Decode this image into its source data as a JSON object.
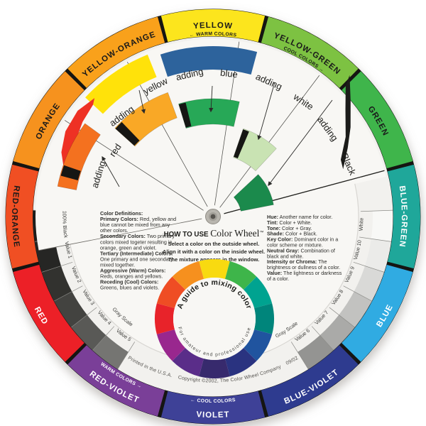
{
  "scene": {
    "background": "#ffffff",
    "card_color": "#f2f1ee",
    "top_disc_color": "#f8f7f4"
  },
  "outer_ring": {
    "separator_color": "#151512",
    "segments": [
      {
        "label": "YELLOW",
        "color": "#FCE51D",
        "text_color": "#1a1a1a",
        "flipped": false,
        "sub_label": "←  WARM COLORS"
      },
      {
        "label": "YELLOW-GREEN",
        "color": "#7DC242",
        "text_color": "#1a1a1a",
        "flipped": false,
        "sub_label": "COOL COLORS  →"
      },
      {
        "label": "GREEN",
        "color": "#3FB54B",
        "text_color": "#1a1a1a",
        "flipped": false
      },
      {
        "label": "BLUE-GREEN",
        "color": "#1FA79A",
        "text_color": "#ffffff",
        "flipped": false
      },
      {
        "label": "BLUE",
        "color": "#30ABE2",
        "text_color": "#ffffff",
        "flipped": true
      },
      {
        "label": "BLUE-VIOLET",
        "color": "#2E3B8F",
        "text_color": "#ffffff",
        "flipped": true
      },
      {
        "label": "VIOLET",
        "color": "#3E4197",
        "text_color": "#ffffff",
        "flipped": true,
        "sub_label": "←  COOL COLORS"
      },
      {
        "label": "RED-VIOLET",
        "color": "#7A3F98",
        "text_color": "#ffffff",
        "flipped": true,
        "sub_label": "WARM COLORS  →"
      },
      {
        "label": "RED",
        "color": "#EC2027",
        "text_color": "#ffffff",
        "flipped": true
      },
      {
        "label": "RED-ORANGE",
        "color": "#F04F23",
        "text_color": "#1a1a1a",
        "flipped": true
      },
      {
        "label": "ORANGE",
        "color": "#F6921E",
        "text_color": "#1a1a1a",
        "flipped": false
      },
      {
        "label": "YELLOW-ORANGE",
        "color": "#F9A11B",
        "text_color": "#1a1a1a",
        "flipped": false
      }
    ]
  },
  "gray_scale": {
    "caption": "Gray Scale",
    "patches": [
      {
        "label": "100% Black",
        "color": "#1d1d1b"
      },
      {
        "label": "Value 1",
        "color": "#262624"
      },
      {
        "label": "Value 2",
        "color": "#32322f"
      },
      {
        "label": "Value 3",
        "color": "#434340"
      },
      {
        "label": "Value 4",
        "color": "#595956"
      },
      {
        "label": "Value 5",
        "color": "#757572"
      },
      {
        "label": "Value 6",
        "color": "#949492"
      },
      {
        "label": "Value 7",
        "color": "#aaaaa8"
      },
      {
        "label": "Value 8",
        "color": "#c2c2c0"
      },
      {
        "label": "Value 9",
        "color": "#d9d9d7"
      },
      {
        "label": "Value 10",
        "color": "#ebebe9"
      },
      {
        "label": "White",
        "color": "#f8f8f6"
      }
    ]
  },
  "top_disc": {
    "sectors": [
      {
        "word1": "adding",
        "word2": "red"
      },
      {
        "word1": "adding",
        "word2": "yellow"
      },
      {
        "word1": "adding",
        "word2": "blue"
      },
      {
        "word1": "adding",
        "word2": "white"
      },
      {
        "word1": "adding",
        "word2": "Black"
      }
    ],
    "patch_colors": {
      "yellow": "#FFE20A",
      "blue": "#2D639C",
      "red_pointer": "#EE3124",
      "black_pointer": "#1b1b19"
    },
    "windows": [
      {
        "name": "adding-red",
        "color": "#F4711F"
      },
      {
        "name": "adding-yellow",
        "color": "#F9A826"
      },
      {
        "name": "adding-blue",
        "color": "#27A857"
      },
      {
        "name": "adding-white",
        "color": "#C9E3B3"
      },
      {
        "name": "adding-black",
        "color": "#1B8A4C"
      }
    ],
    "stripe_color": "#161614"
  },
  "center_text": {
    "heading_prefix": "HOW TO USE",
    "heading_title": "Color Wheel",
    "heading_tm": "™",
    "instructions": [
      "Select a color on the outside wheel.",
      "Align it with a color on the inside wheel.",
      "The mixture appears in the window."
    ],
    "definitions_left": [
      {
        "b": "Color Definitions:",
        "t": ""
      },
      {
        "b": "Primary Colors:",
        "t": " Red, yellow and"
      },
      {
        "b": "",
        "t": "blue cannot be mixed from any"
      },
      {
        "b": "",
        "t": "other colors."
      },
      {
        "b": "Secondary Colors:",
        "t": " Two primary"
      },
      {
        "b": "",
        "t": "colors mixed togeter resulting in"
      },
      {
        "b": "",
        "t": "orange, green and violet."
      },
      {
        "b": "Tertiary (Intermediate) Colors:",
        "t": ""
      },
      {
        "b": "",
        "t": "One primary and one secondary"
      },
      {
        "b": "",
        "t": "mixed  together."
      },
      {
        "b": "Aggressive (Warm) Colors:",
        "t": ""
      },
      {
        "b": "",
        "t": "Reds, oranges and yellows."
      },
      {
        "b": "Receding (Cool) Colors:",
        "t": ""
      },
      {
        "b": "",
        "t": "Greens, blues and violets."
      }
    ],
    "definitions_right": [
      {
        "b": "Hue:",
        "t": " Another name for color."
      },
      {
        "b": "Tint:",
        "t": " Color + White."
      },
      {
        "b": "Tone:",
        "t": " Color + Gray."
      },
      {
        "b": "Shade:",
        "t": " Color + Black."
      },
      {
        "b": "Key Color:",
        "t": " Dominant color in a"
      },
      {
        "b": "",
        "t": "color scheme or mixture."
      },
      {
        "b": "Neutral Gray:",
        "t": " Combination of"
      },
      {
        "b": "",
        "t": "black and white."
      },
      {
        "b": "Intensity or Chroma:",
        "t": " The"
      },
      {
        "b": "",
        "t": "brightness or dullness of a color."
      },
      {
        "b": "Value:",
        "t": " The lightness or darkness"
      },
      {
        "b": "",
        "t": "of a color."
      }
    ]
  },
  "mini_wheel": {
    "top_text": "A guide to mixing color",
    "bottom_text": "For amateur and professional use",
    "segment_colors": [
      "#F8DA10",
      "#3EB54A",
      "#00A390",
      "#00857B",
      "#20549F",
      "#2A3380",
      "#372A6D",
      "#5A2D89",
      "#99278E",
      "#E8232A",
      "#EF4D24",
      "#F6901E"
    ]
  },
  "footer": {
    "printed": "Printed in the U.S.A.",
    "copyright": "Copyright ©2002, The Color Wheel Company",
    "code": "09/02"
  },
  "hub": {
    "outer": "#b8b5ae",
    "mid": "#a19e97",
    "inner": "#56534e"
  }
}
